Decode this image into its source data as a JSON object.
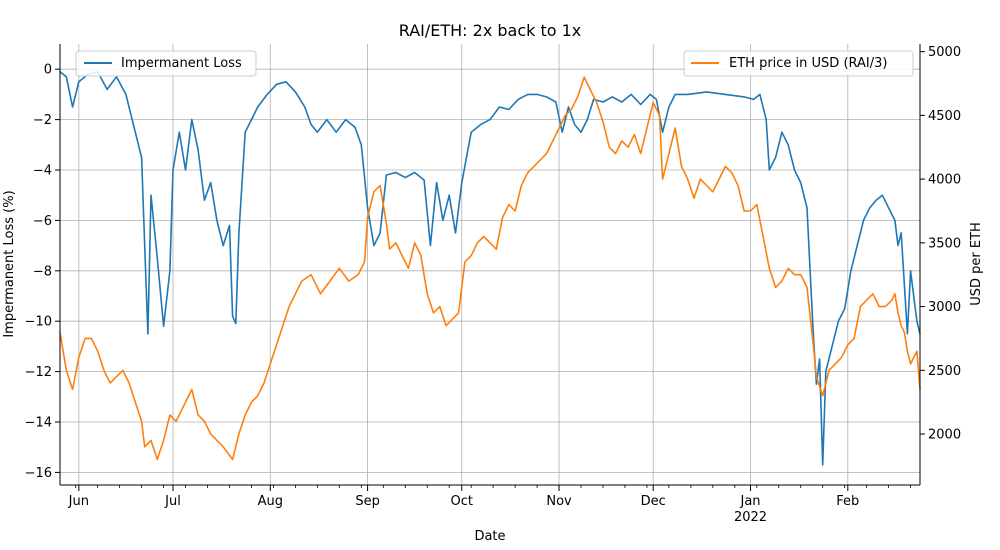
{
  "chart_data": {
    "type": "line",
    "title": "RAI/ETH: 2x back to 1x",
    "xlabel": "Date",
    "ylabel_left": "Impermanent Loss (%)",
    "ylabel_right": "USD per ETH",
    "x_ticks": [
      {
        "date": "2021-06-01",
        "label": "Jun"
      },
      {
        "date": "2021-07-01",
        "label": "Jul"
      },
      {
        "date": "2021-08-01",
        "label": "Aug"
      },
      {
        "date": "2021-09-01",
        "label": "Sep"
      },
      {
        "date": "2021-10-01",
        "label": "Oct"
      },
      {
        "date": "2021-11-01",
        "label": "Nov"
      },
      {
        "date": "2021-12-01",
        "label": "Dec"
      },
      {
        "date": "2022-01-01",
        "label": "Jan",
        "sublabel": "2022"
      },
      {
        "date": "2022-02-01",
        "label": "Feb"
      }
    ],
    "xlim": [
      "2021-05-26",
      "2022-02-24"
    ],
    "left_axis": {
      "ylim": [
        -16.5,
        1
      ],
      "ticks": [
        0,
        -2,
        -4,
        -6,
        -8,
        -10,
        -12,
        -14,
        -16
      ],
      "color": "#1f77b4"
    },
    "right_axis": {
      "ylim": [
        1600,
        5060
      ],
      "ticks": [
        2000,
        2500,
        3000,
        3500,
        4000,
        4500,
        5000
      ],
      "color": "#ff7f0e"
    },
    "grid": true,
    "legends": [
      {
        "position": "top-left",
        "label": "Impermanent Loss",
        "color": "#1f77b4"
      },
      {
        "position": "top-right",
        "label": "ETH price in USD (RAI/3)",
        "color": "#ff7f0e"
      }
    ],
    "series": [
      {
        "name": "Impermanent Loss",
        "axis": "left",
        "color": "#1f77b4",
        "points": [
          [
            "2021-05-26",
            -0.1
          ],
          [
            "2021-05-28",
            -0.3
          ],
          [
            "2021-05-30",
            -1.5
          ],
          [
            "2021-06-01",
            -0.5
          ],
          [
            "2021-06-04",
            -0.2
          ],
          [
            "2021-06-07",
            -0.1
          ],
          [
            "2021-06-10",
            -0.8
          ],
          [
            "2021-06-13",
            -0.3
          ],
          [
            "2021-06-16",
            -1.0
          ],
          [
            "2021-06-19",
            -2.5
          ],
          [
            "2021-06-21",
            -3.5
          ],
          [
            "2021-06-22",
            -7.0
          ],
          [
            "2021-06-23",
            -10.5
          ],
          [
            "2021-06-24",
            -5.0
          ],
          [
            "2021-06-26",
            -7.5
          ],
          [
            "2021-06-28",
            -10.2
          ],
          [
            "2021-06-30",
            -8.0
          ],
          [
            "2021-07-01",
            -4.0
          ],
          [
            "2021-07-03",
            -2.5
          ],
          [
            "2021-07-05",
            -4.0
          ],
          [
            "2021-07-07",
            -2.0
          ],
          [
            "2021-07-09",
            -3.2
          ],
          [
            "2021-07-11",
            -5.2
          ],
          [
            "2021-07-13",
            -4.5
          ],
          [
            "2021-07-15",
            -6.0
          ],
          [
            "2021-07-17",
            -7.0
          ],
          [
            "2021-07-19",
            -6.2
          ],
          [
            "2021-07-20",
            -9.8
          ],
          [
            "2021-07-21",
            -10.1
          ],
          [
            "2021-07-22",
            -6.5
          ],
          [
            "2021-07-24",
            -2.5
          ],
          [
            "2021-07-26",
            -2.0
          ],
          [
            "2021-07-28",
            -1.5
          ],
          [
            "2021-07-31",
            -1.0
          ],
          [
            "2021-08-03",
            -0.6
          ],
          [
            "2021-08-06",
            -0.5
          ],
          [
            "2021-08-09",
            -0.9
          ],
          [
            "2021-08-12",
            -1.5
          ],
          [
            "2021-08-14",
            -2.2
          ],
          [
            "2021-08-16",
            -2.5
          ],
          [
            "2021-08-19",
            -2.0
          ],
          [
            "2021-08-22",
            -2.5
          ],
          [
            "2021-08-25",
            -2.0
          ],
          [
            "2021-08-28",
            -2.3
          ],
          [
            "2021-08-30",
            -3.0
          ],
          [
            "2021-09-01",
            -5.5
          ],
          [
            "2021-09-03",
            -7.0
          ],
          [
            "2021-09-05",
            -6.5
          ],
          [
            "2021-09-07",
            -4.2
          ],
          [
            "2021-09-10",
            -4.1
          ],
          [
            "2021-09-13",
            -4.3
          ],
          [
            "2021-09-16",
            -4.1
          ],
          [
            "2021-09-19",
            -4.4
          ],
          [
            "2021-09-21",
            -7.0
          ],
          [
            "2021-09-23",
            -4.5
          ],
          [
            "2021-09-25",
            -6.0
          ],
          [
            "2021-09-27",
            -5.0
          ],
          [
            "2021-09-29",
            -6.5
          ],
          [
            "2021-10-01",
            -4.5
          ],
          [
            "2021-10-04",
            -2.5
          ],
          [
            "2021-10-07",
            -2.2
          ],
          [
            "2021-10-10",
            -2.0
          ],
          [
            "2021-10-13",
            -1.5
          ],
          [
            "2021-10-16",
            -1.6
          ],
          [
            "2021-10-19",
            -1.2
          ],
          [
            "2021-10-22",
            -1.0
          ],
          [
            "2021-10-25",
            -1.0
          ],
          [
            "2021-10-28",
            -1.1
          ],
          [
            "2021-10-31",
            -1.3
          ],
          [
            "2021-11-02",
            -2.5
          ],
          [
            "2021-11-04",
            -1.5
          ],
          [
            "2021-11-06",
            -2.2
          ],
          [
            "2021-11-08",
            -2.5
          ],
          [
            "2021-11-10",
            -2.0
          ],
          [
            "2021-11-12",
            -1.2
          ],
          [
            "2021-11-15",
            -1.3
          ],
          [
            "2021-11-18",
            -1.1
          ],
          [
            "2021-11-21",
            -1.3
          ],
          [
            "2021-11-24",
            -1.0
          ],
          [
            "2021-11-27",
            -1.4
          ],
          [
            "2021-11-30",
            -1.0
          ],
          [
            "2021-12-02",
            -1.2
          ],
          [
            "2021-12-04",
            -2.5
          ],
          [
            "2021-12-06",
            -1.5
          ],
          [
            "2021-12-08",
            -1.0
          ],
          [
            "2021-12-12",
            -1.0
          ],
          [
            "2021-12-18",
            -0.9
          ],
          [
            "2021-12-24",
            -1.0
          ],
          [
            "2021-12-30",
            -1.1
          ],
          [
            "2022-01-02",
            -1.2
          ],
          [
            "2022-01-04",
            -1.0
          ],
          [
            "2022-01-06",
            -2.0
          ],
          [
            "2022-01-07",
            -4.0
          ],
          [
            "2022-01-09",
            -3.5
          ],
          [
            "2022-01-11",
            -2.5
          ],
          [
            "2022-01-13",
            -3.0
          ],
          [
            "2022-01-15",
            -4.0
          ],
          [
            "2022-01-17",
            -4.5
          ],
          [
            "2022-01-19",
            -5.5
          ],
          [
            "2022-01-20",
            -8.0
          ],
          [
            "2022-01-21",
            -10.5
          ],
          [
            "2022-01-22",
            -12.5
          ],
          [
            "2022-01-23",
            -11.5
          ],
          [
            "2022-01-24",
            -15.7
          ],
          [
            "2022-01-25",
            -12.0
          ],
          [
            "2022-01-27",
            -11.0
          ],
          [
            "2022-01-29",
            -10.0
          ],
          [
            "2022-01-31",
            -9.5
          ],
          [
            "2022-02-02",
            -8.0
          ],
          [
            "2022-02-04",
            -7.0
          ],
          [
            "2022-02-06",
            -6.0
          ],
          [
            "2022-02-08",
            -5.5
          ],
          [
            "2022-02-10",
            -5.2
          ],
          [
            "2022-02-12",
            -5.0
          ],
          [
            "2022-02-14",
            -5.5
          ],
          [
            "2022-02-16",
            -6.0
          ],
          [
            "2022-02-17",
            -7.0
          ],
          [
            "2022-02-18",
            -6.5
          ],
          [
            "2022-02-19",
            -8.5
          ],
          [
            "2022-02-20",
            -10.5
          ],
          [
            "2022-02-21",
            -8.0
          ],
          [
            "2022-02-22",
            -9.0
          ],
          [
            "2022-02-23",
            -10.0
          ],
          [
            "2022-02-24",
            -10.5
          ]
        ]
      },
      {
        "name": "ETH price in USD (RAI/3)",
        "axis": "right",
        "color": "#ff7f0e",
        "points": [
          [
            "2021-05-26",
            2800
          ],
          [
            "2021-05-28",
            2500
          ],
          [
            "2021-05-30",
            2350
          ],
          [
            "2021-06-01",
            2600
          ],
          [
            "2021-06-03",
            2750
          ],
          [
            "2021-06-05",
            2750
          ],
          [
            "2021-06-07",
            2650
          ],
          [
            "2021-06-09",
            2500
          ],
          [
            "2021-06-11",
            2400
          ],
          [
            "2021-06-13",
            2450
          ],
          [
            "2021-06-15",
            2500
          ],
          [
            "2021-06-17",
            2400
          ],
          [
            "2021-06-19",
            2250
          ],
          [
            "2021-06-21",
            2100
          ],
          [
            "2021-06-22",
            1900
          ],
          [
            "2021-06-24",
            1950
          ],
          [
            "2021-06-26",
            1800
          ],
          [
            "2021-06-28",
            1950
          ],
          [
            "2021-06-30",
            2150
          ],
          [
            "2021-07-02",
            2100
          ],
          [
            "2021-07-05",
            2250
          ],
          [
            "2021-07-07",
            2350
          ],
          [
            "2021-07-09",
            2150
          ],
          [
            "2021-07-11",
            2100
          ],
          [
            "2021-07-13",
            2000
          ],
          [
            "2021-07-15",
            1950
          ],
          [
            "2021-07-17",
            1900
          ],
          [
            "2021-07-20",
            1800
          ],
          [
            "2021-07-22",
            2000
          ],
          [
            "2021-07-24",
            2150
          ],
          [
            "2021-07-26",
            2250
          ],
          [
            "2021-07-28",
            2300
          ],
          [
            "2021-07-30",
            2400
          ],
          [
            "2021-08-01",
            2550
          ],
          [
            "2021-08-03",
            2700
          ],
          [
            "2021-08-05",
            2850
          ],
          [
            "2021-08-07",
            3000
          ],
          [
            "2021-08-09",
            3100
          ],
          [
            "2021-08-11",
            3200
          ],
          [
            "2021-08-14",
            3250
          ],
          [
            "2021-08-17",
            3100
          ],
          [
            "2021-08-20",
            3200
          ],
          [
            "2021-08-23",
            3300
          ],
          [
            "2021-08-26",
            3200
          ],
          [
            "2021-08-29",
            3250
          ],
          [
            "2021-08-31",
            3350
          ],
          [
            "2021-09-01",
            3700
          ],
          [
            "2021-09-03",
            3900
          ],
          [
            "2021-09-05",
            3950
          ],
          [
            "2021-09-07",
            3650
          ],
          [
            "2021-09-08",
            3450
          ],
          [
            "2021-09-10",
            3500
          ],
          [
            "2021-09-12",
            3400
          ],
          [
            "2021-09-14",
            3300
          ],
          [
            "2021-09-16",
            3500
          ],
          [
            "2021-09-18",
            3400
          ],
          [
            "2021-09-20",
            3100
          ],
          [
            "2021-09-22",
            2950
          ],
          [
            "2021-09-24",
            3000
          ],
          [
            "2021-09-26",
            2850
          ],
          [
            "2021-09-28",
            2900
          ],
          [
            "2021-09-30",
            2950
          ],
          [
            "2021-10-02",
            3350
          ],
          [
            "2021-10-04",
            3400
          ],
          [
            "2021-10-06",
            3500
          ],
          [
            "2021-10-08",
            3550
          ],
          [
            "2021-10-10",
            3500
          ],
          [
            "2021-10-12",
            3450
          ],
          [
            "2021-10-14",
            3700
          ],
          [
            "2021-10-16",
            3800
          ],
          [
            "2021-10-18",
            3750
          ],
          [
            "2021-10-20",
            3950
          ],
          [
            "2021-10-22",
            4050
          ],
          [
            "2021-10-24",
            4100
          ],
          [
            "2021-10-26",
            4150
          ],
          [
            "2021-10-28",
            4200
          ],
          [
            "2021-10-30",
            4300
          ],
          [
            "2021-11-01",
            4400
          ],
          [
            "2021-11-03",
            4500
          ],
          [
            "2021-11-05",
            4550
          ],
          [
            "2021-11-07",
            4650
          ],
          [
            "2021-11-09",
            4800
          ],
          [
            "2021-11-11",
            4700
          ],
          [
            "2021-11-13",
            4600
          ],
          [
            "2021-11-15",
            4450
          ],
          [
            "2021-11-17",
            4250
          ],
          [
            "2021-11-19",
            4200
          ],
          [
            "2021-11-21",
            4300
          ],
          [
            "2021-11-23",
            4250
          ],
          [
            "2021-11-25",
            4350
          ],
          [
            "2021-11-27",
            4200
          ],
          [
            "2021-11-29",
            4400
          ],
          [
            "2021-12-01",
            4600
          ],
          [
            "2021-12-03",
            4500
          ],
          [
            "2021-12-04",
            4000
          ],
          [
            "2021-12-06",
            4200
          ],
          [
            "2021-12-08",
            4400
          ],
          [
            "2021-12-10",
            4100
          ],
          [
            "2021-12-12",
            4000
          ],
          [
            "2021-12-14",
            3850
          ],
          [
            "2021-12-16",
            4000
          ],
          [
            "2021-12-18",
            3950
          ],
          [
            "2021-12-20",
            3900
          ],
          [
            "2021-12-22",
            4000
          ],
          [
            "2021-12-24",
            4100
          ],
          [
            "2021-12-26",
            4050
          ],
          [
            "2021-12-28",
            3950
          ],
          [
            "2021-12-30",
            3750
          ],
          [
            "2022-01-01",
            3750
          ],
          [
            "2022-01-03",
            3800
          ],
          [
            "2022-01-05",
            3550
          ],
          [
            "2022-01-07",
            3300
          ],
          [
            "2022-01-09",
            3150
          ],
          [
            "2022-01-11",
            3200
          ],
          [
            "2022-01-13",
            3300
          ],
          [
            "2022-01-15",
            3250
          ],
          [
            "2022-01-17",
            3250
          ],
          [
            "2022-01-19",
            3150
          ],
          [
            "2022-01-21",
            2700
          ],
          [
            "2022-01-22",
            2450
          ],
          [
            "2022-01-24",
            2300
          ],
          [
            "2022-01-26",
            2500
          ],
          [
            "2022-01-28",
            2550
          ],
          [
            "2022-01-30",
            2600
          ],
          [
            "2022-02-01",
            2700
          ],
          [
            "2022-02-03",
            2750
          ],
          [
            "2022-02-05",
            3000
          ],
          [
            "2022-02-07",
            3050
          ],
          [
            "2022-02-09",
            3100
          ],
          [
            "2022-02-11",
            3000
          ],
          [
            "2022-02-13",
            3000
          ],
          [
            "2022-02-15",
            3050
          ],
          [
            "2022-02-16",
            3100
          ],
          [
            "2022-02-17",
            2950
          ],
          [
            "2022-02-18",
            2850
          ],
          [
            "2022-02-19",
            2800
          ],
          [
            "2022-02-20",
            2650
          ],
          [
            "2022-02-21",
            2550
          ],
          [
            "2022-02-22",
            2600
          ],
          [
            "2022-02-23",
            2650
          ],
          [
            "2022-02-24",
            2350
          ]
        ]
      }
    ]
  }
}
